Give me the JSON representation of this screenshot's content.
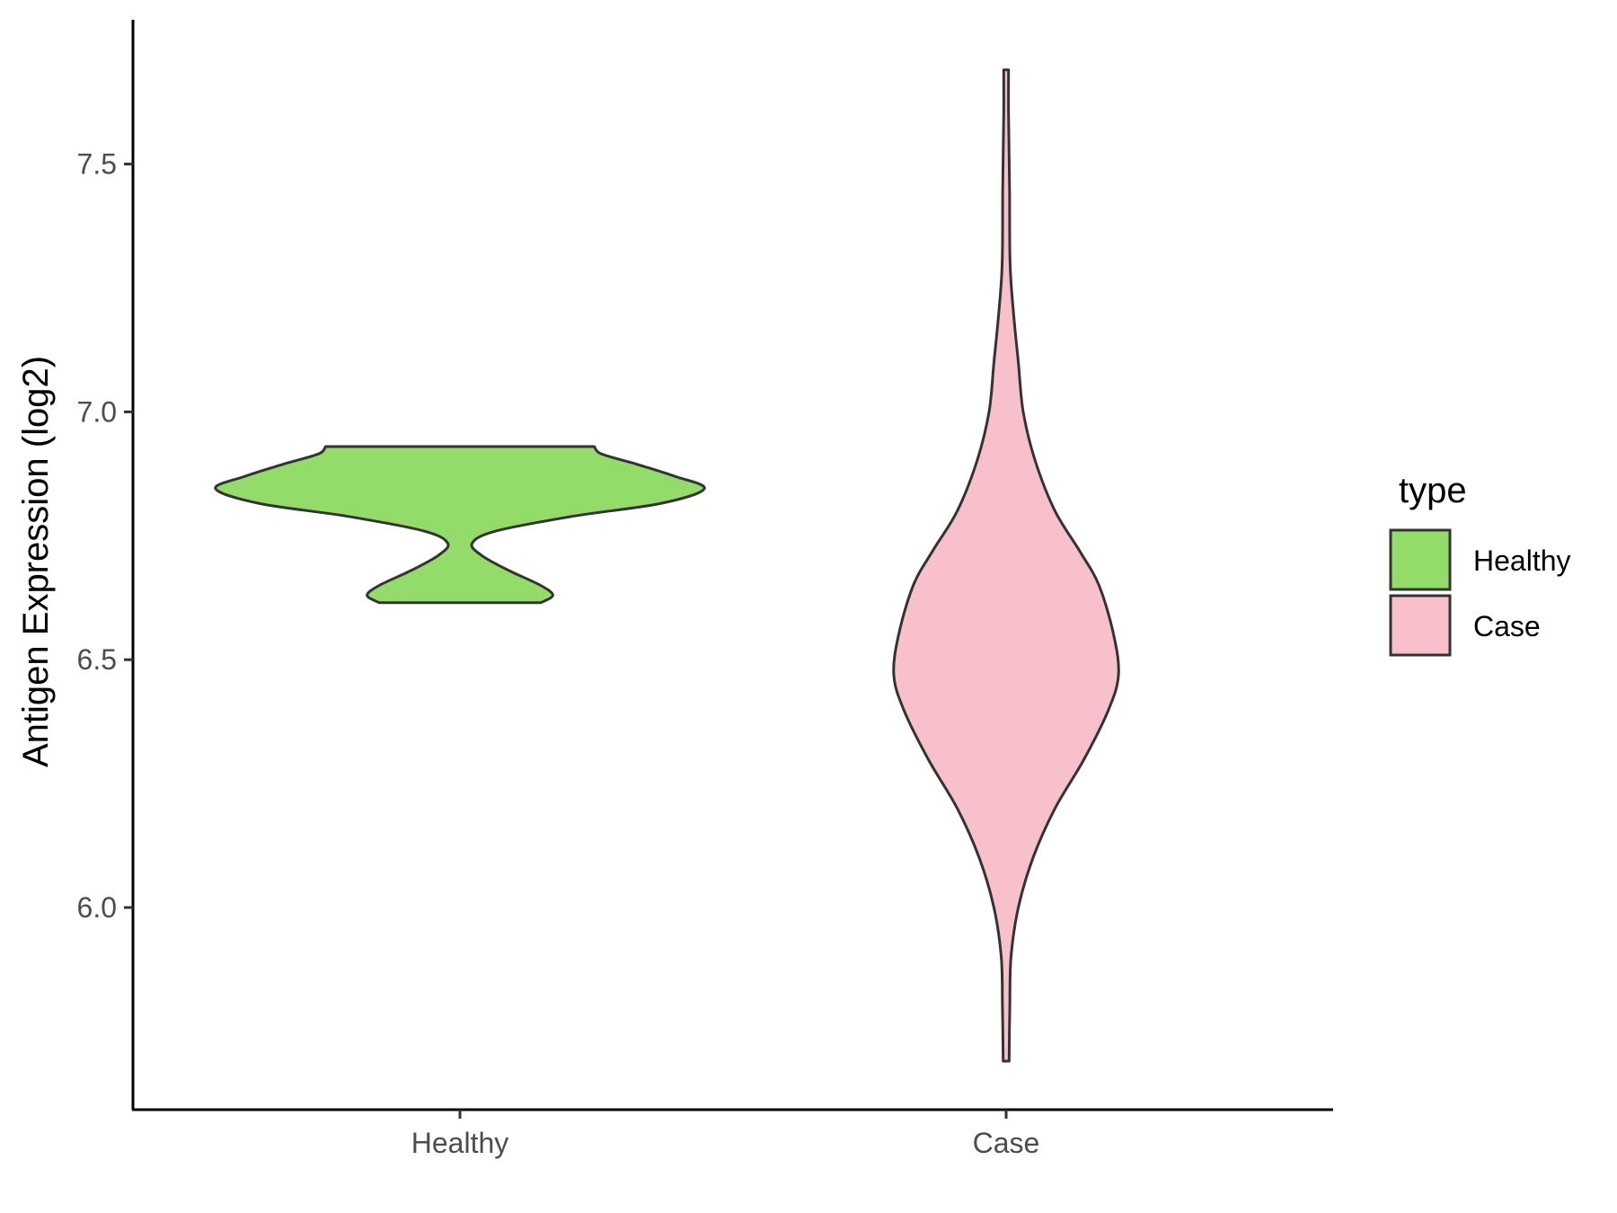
{
  "chart_data": {
    "type": "violin",
    "title": "",
    "xlabel": "",
    "ylabel": "Antigen Expression (log2)",
    "ylim": [
      5.58,
      7.78
    ],
    "yticks": [
      6.0,
      6.5,
      7.0,
      7.5
    ],
    "ytick_labels": [
      "6.0",
      "6.5",
      "7.0",
      "7.5"
    ],
    "categories": [
      "Healthy",
      "Case"
    ],
    "grid": false,
    "legend": {
      "title": "type",
      "position": "right",
      "entries": [
        {
          "label": "Healthy",
          "color": "#93dc6a"
        },
        {
          "label": "Case",
          "color": "#f7c0cb"
        }
      ]
    },
    "series": [
      {
        "category": "Healthy",
        "color": "#93dc6a",
        "min": 6.615,
        "max": 6.93,
        "density_profile": [
          [
            6.615,
            0.33
          ],
          [
            6.63,
            0.38
          ],
          [
            6.65,
            0.33
          ],
          [
            6.68,
            0.2
          ],
          [
            6.71,
            0.09
          ],
          [
            6.735,
            0.05
          ],
          [
            6.76,
            0.15
          ],
          [
            6.79,
            0.47
          ],
          [
            6.815,
            0.82
          ],
          [
            6.845,
            1.0
          ],
          [
            6.87,
            0.88
          ],
          [
            6.895,
            0.72
          ],
          [
            6.915,
            0.58
          ],
          [
            6.93,
            0.55
          ]
        ]
      },
      {
        "category": "Case",
        "color": "#f7c0cb",
        "min": 5.69,
        "max": 7.69,
        "density_profile": [
          [
            5.69,
            0.012
          ],
          [
            5.8,
            0.015
          ],
          [
            5.9,
            0.02
          ],
          [
            6.0,
            0.05
          ],
          [
            6.1,
            0.11
          ],
          [
            6.2,
            0.2
          ],
          [
            6.3,
            0.32
          ],
          [
            6.4,
            0.42
          ],
          [
            6.47,
            0.46
          ],
          [
            6.55,
            0.44
          ],
          [
            6.65,
            0.38
          ],
          [
            6.72,
            0.3
          ],
          [
            6.8,
            0.2
          ],
          [
            6.9,
            0.12
          ],
          [
            7.0,
            0.07
          ],
          [
            7.1,
            0.05
          ],
          [
            7.2,
            0.03
          ],
          [
            7.3,
            0.016
          ],
          [
            7.45,
            0.014
          ],
          [
            7.6,
            0.01
          ],
          [
            7.69,
            0.01
          ]
        ]
      }
    ]
  }
}
